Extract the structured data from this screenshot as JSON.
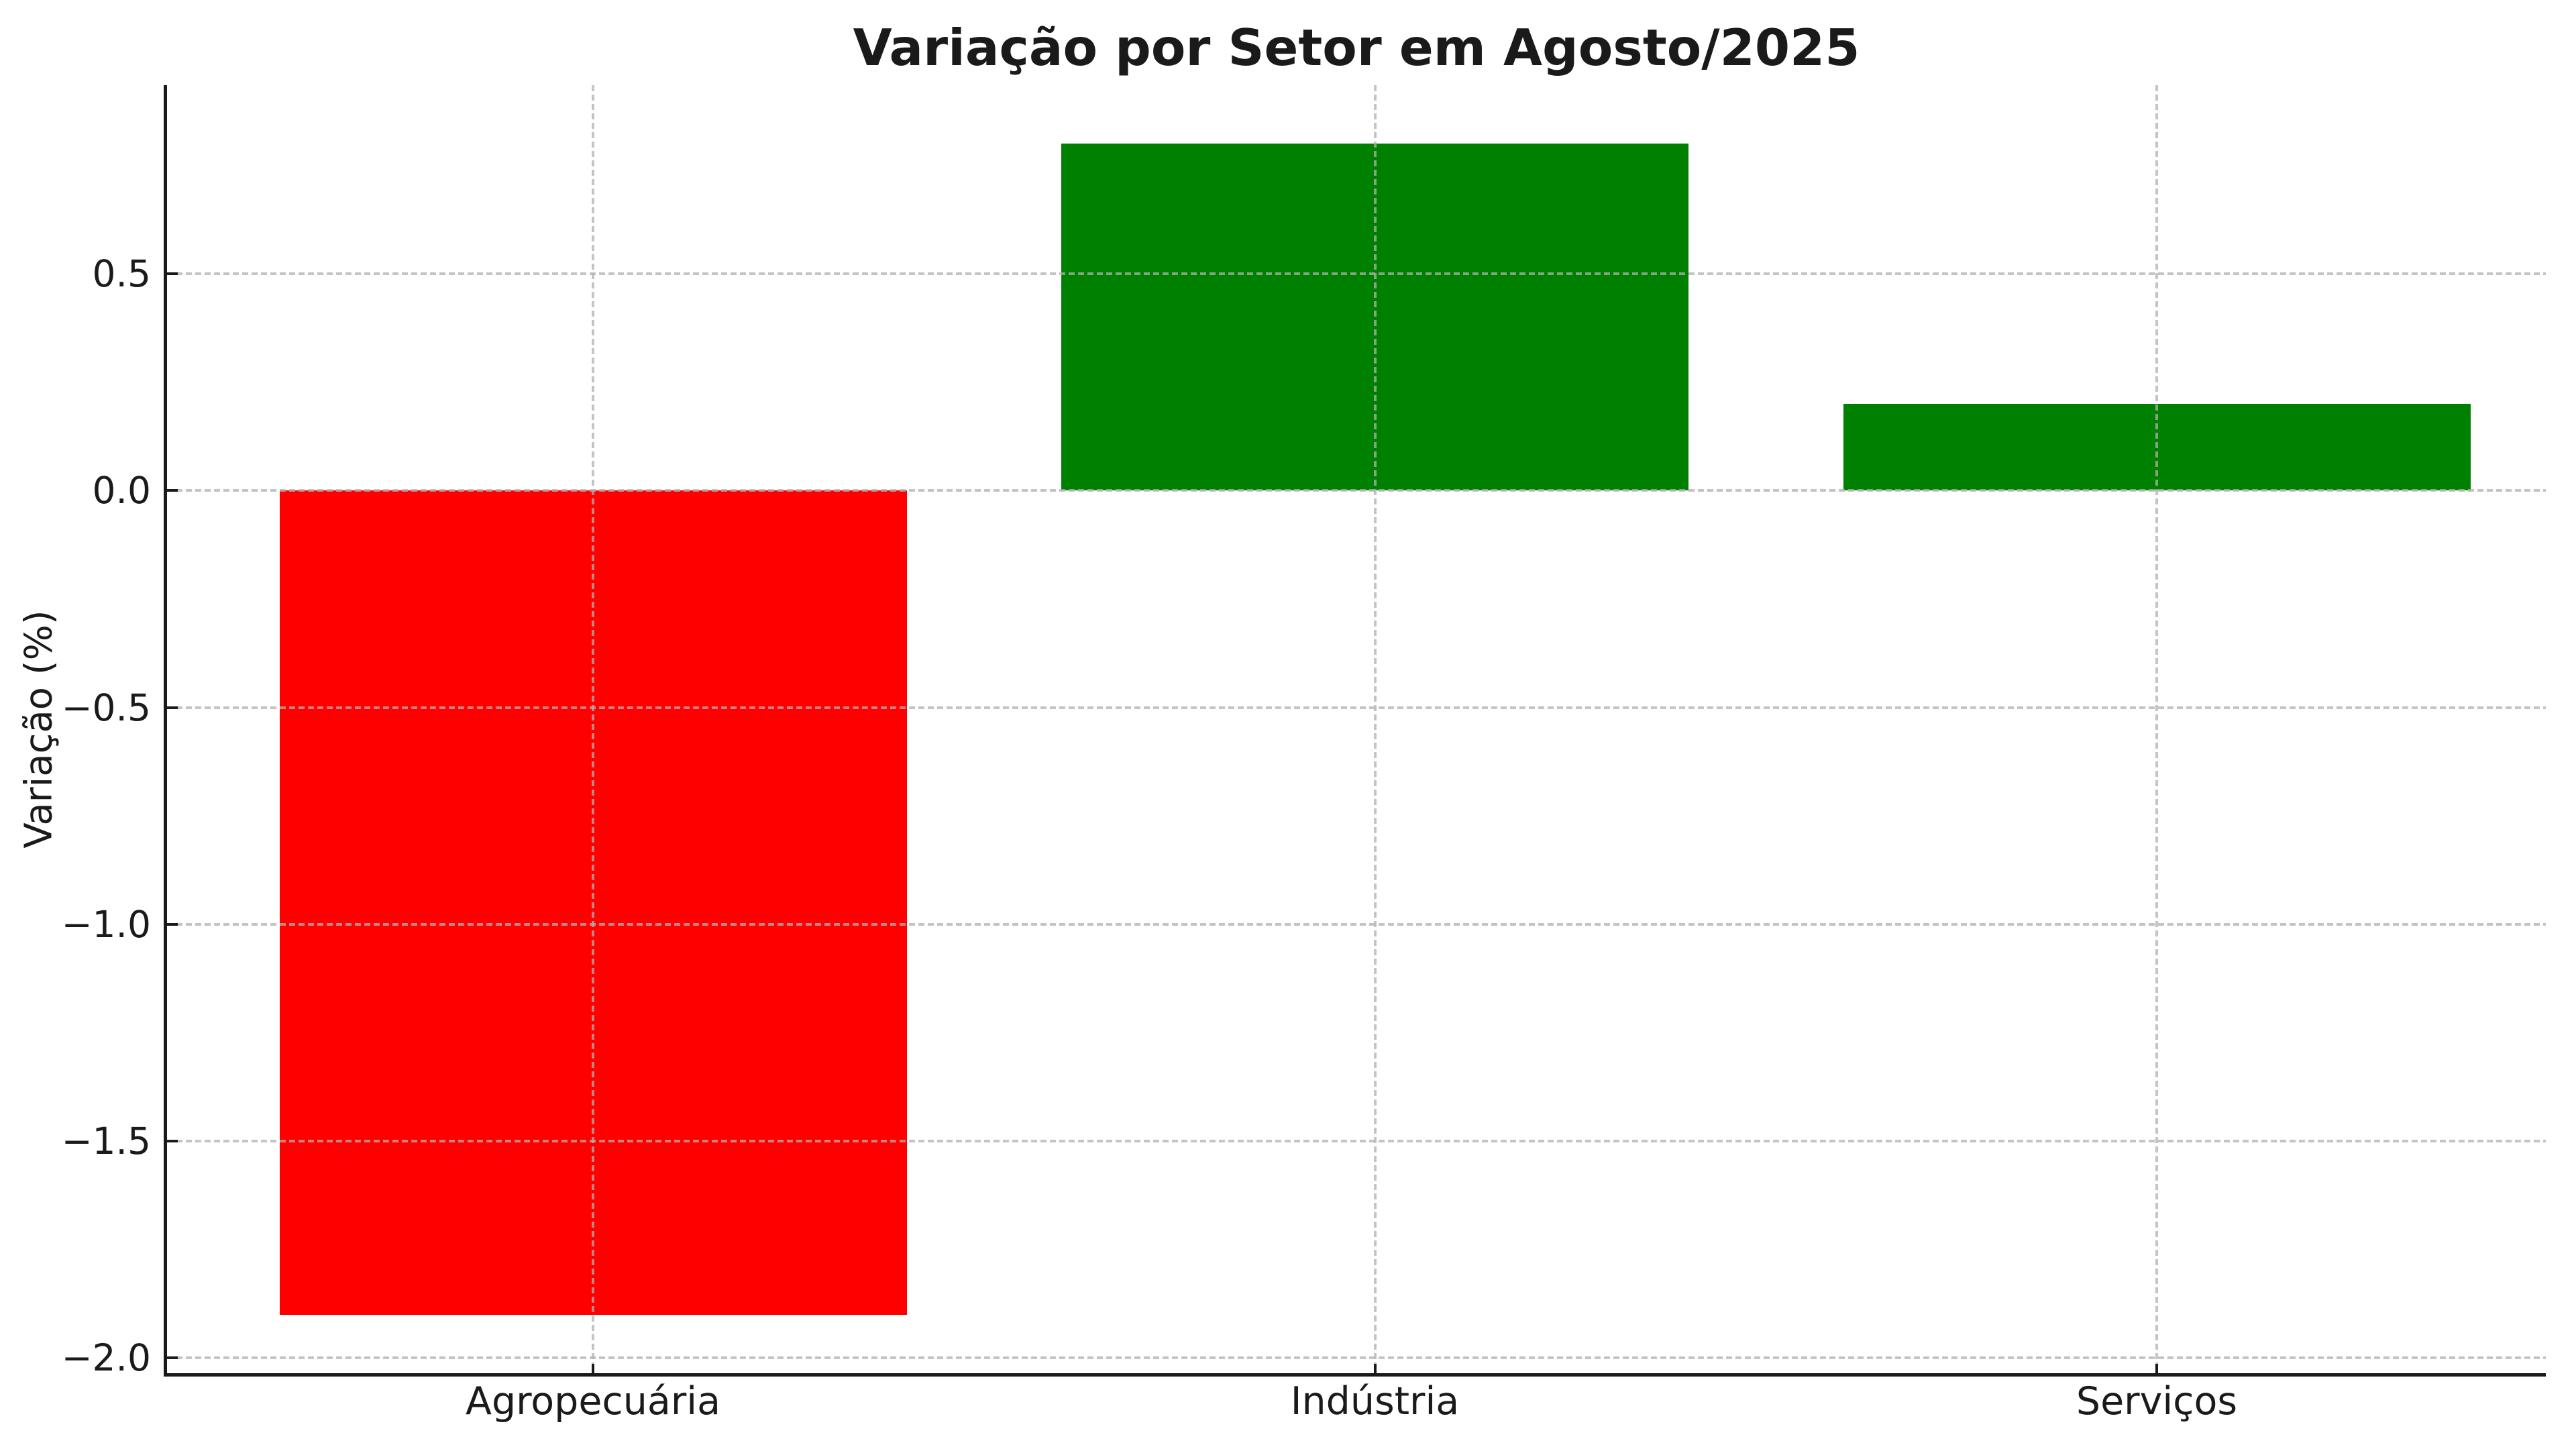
{
  "figure": {
    "background_color": "#ffffff",
    "text_color": "#1a1a1a",
    "spine_color": "#1a1a1a"
  },
  "chart_data": {
    "type": "bar",
    "title": "Variação por Setor em Agosto/2025",
    "xlabel": "",
    "ylabel": "Variação (%)",
    "categories": [
      "Agropecuária",
      "Indústria",
      "Serviços"
    ],
    "values": [
      -1.9,
      0.8,
      0.2
    ],
    "bar_colors": [
      "#ff0000",
      "#008000",
      "#008000"
    ],
    "color_legend": {
      "negative_value_color": "#ff0000",
      "positive_value_color": "#008000"
    },
    "ylim": [
      -2.035,
      0.935
    ],
    "yticks": [
      0.5,
      0.0,
      -0.5,
      -1.0,
      -1.5,
      -2.0
    ],
    "ytick_labels": [
      "0.5",
      "0.0",
      "−0.5",
      "−1.0",
      "−1.5",
      "−2.0"
    ],
    "grid": true,
    "grid_style": "dashed",
    "grid_color": "#b0b0b0",
    "grid_above_bars": true,
    "tick_direction": "in",
    "spines_visible": [
      "left",
      "bottom"
    ],
    "legend_position": "none"
  }
}
